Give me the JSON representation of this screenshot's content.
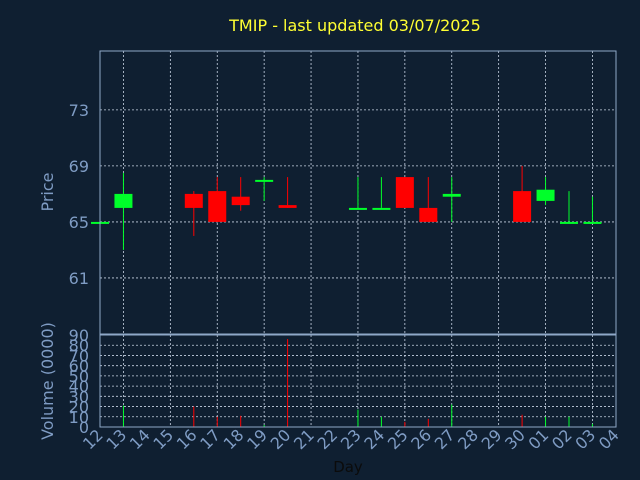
{
  "colors": {
    "background": "#0f1f31",
    "frame": "#8fa8c8",
    "grid": "#c8d4e4",
    "title": "#ffff33",
    "label": "#7f9cc4",
    "xlabel": "#0b0b0b",
    "up": "#00ff2a",
    "down": "#ff0000"
  },
  "chart_data": {
    "type": "candlestick",
    "title": "TMIP - last updated 03/07/2025",
    "xlabel": "Day",
    "price_panel": {
      "ylabel": "Price",
      "ylim": [
        57,
        77.2
      ],
      "yticks": [
        61,
        65,
        69,
        73
      ]
    },
    "volume_panel": {
      "ylabel": "Volume (0000)",
      "ylim": [
        0,
        90
      ],
      "yticks": [
        0,
        10,
        20,
        30,
        40,
        50,
        60,
        70,
        80,
        90
      ],
      "tick_labels": [
        "0",
        "10",
        "20",
        "30",
        "40",
        "50",
        "60",
        "70",
        "80",
        "90"
      ]
    },
    "x_tick_labels": [
      "12",
      "13",
      "14",
      "15",
      "16",
      "17",
      "18",
      "19",
      "20",
      "21",
      "22",
      "23",
      "24",
      "25",
      "26",
      "27",
      "28",
      "29",
      "30",
      "01",
      "02",
      "03",
      "04"
    ],
    "candles": [
      {
        "day": "12",
        "open": 65.0,
        "high": 65.0,
        "low": 65.0,
        "close": 65.0,
        "volume": 0
      },
      {
        "day": "13",
        "open": 66.0,
        "high": 68.5,
        "low": 63.0,
        "close": 67.0,
        "volume": 21
      },
      {
        "day": "16",
        "open": 67.0,
        "high": 67.2,
        "low": 64.0,
        "close": 66.0,
        "volume": 20
      },
      {
        "day": "17",
        "open": 67.2,
        "high": 68.2,
        "low": 65.0,
        "close": 65.0,
        "volume": 10
      },
      {
        "day": "18",
        "open": 66.8,
        "high": 68.2,
        "low": 65.8,
        "close": 66.2,
        "volume": 11
      },
      {
        "day": "19",
        "open": 68.0,
        "high": 68.2,
        "low": 66.5,
        "close": 68.0,
        "volume": 2
      },
      {
        "day": "20",
        "open": 66.2,
        "high": 68.2,
        "low": 66.0,
        "close": 66.0,
        "volume": 86
      },
      {
        "day": "23",
        "open": 66.0,
        "high": 68.2,
        "low": 66.0,
        "close": 66.0,
        "volume": 17
      },
      {
        "day": "24",
        "open": 66.0,
        "high": 68.2,
        "low": 66.0,
        "close": 66.0,
        "volume": 10
      },
      {
        "day": "25",
        "open": 68.2,
        "high": 68.2,
        "low": 66.0,
        "close": 66.0,
        "volume": 5
      },
      {
        "day": "26",
        "open": 66.0,
        "high": 68.2,
        "low": 65.0,
        "close": 65.0,
        "volume": 8
      },
      {
        "day": "27",
        "open": 66.8,
        "high": 68.2,
        "low": 65.0,
        "close": 67.0,
        "volume": 22
      },
      {
        "day": "30",
        "open": 67.2,
        "high": 69.0,
        "low": 65.0,
        "close": 65.0,
        "volume": 12
      },
      {
        "day": "01",
        "open": 66.5,
        "high": 68.2,
        "low": 66.2,
        "close": 67.3,
        "volume": 10
      },
      {
        "day": "02",
        "open": 65.0,
        "high": 67.2,
        "low": 65.0,
        "close": 65.0,
        "volume": 10
      },
      {
        "day": "03",
        "open": 65.0,
        "high": 66.8,
        "low": 65.0,
        "close": 65.0,
        "volume": 3
      }
    ]
  }
}
